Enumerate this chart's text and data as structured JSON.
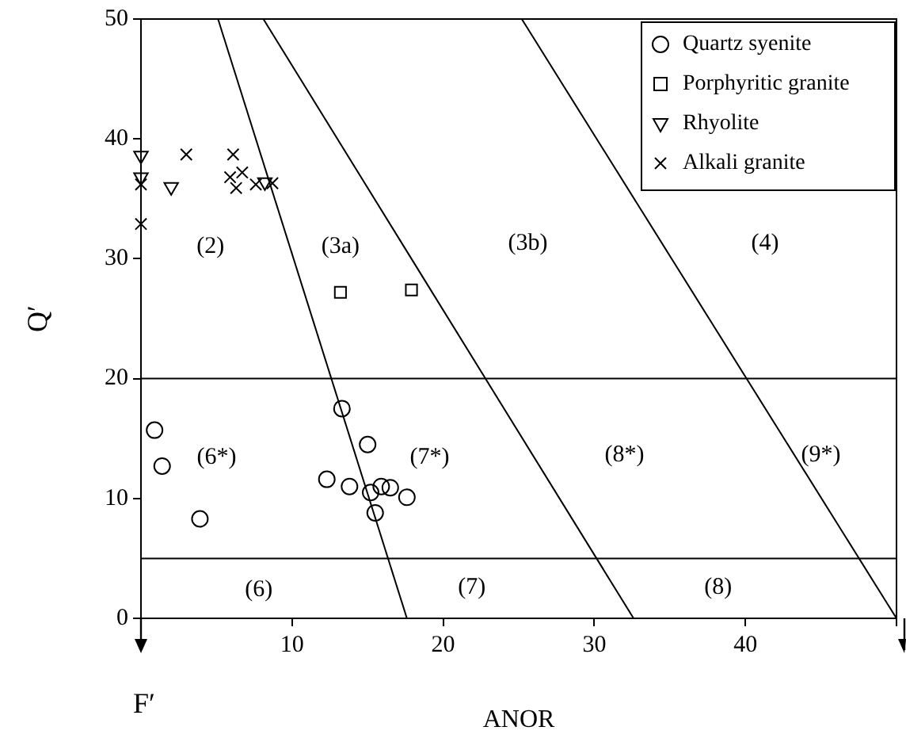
{
  "chart_data": {
    "type": "scatter",
    "xlabel": "ANOR",
    "ylabel": "Q′",
    "xlim": [
      0,
      50
    ],
    "ylim": [
      0,
      50
    ],
    "xticks": [
      {
        "value": 0,
        "label": null
      },
      10,
      20,
      30,
      40,
      {
        "value": 50,
        "label": null
      }
    ],
    "yticks": [
      0,
      10,
      20,
      30,
      40,
      50
    ],
    "grid": false,
    "legend": "top right",
    "series": [
      {
        "name": "Quartz syenite",
        "color": "#000000",
        "marker": "circle",
        "x": [
          0.9,
          1.4,
          3.9,
          13.3,
          15.0,
          12.3,
          13.8,
          15.2,
          15.9,
          16.5,
          17.6,
          15.5
        ],
        "values": [
          15.7,
          12.7,
          8.3,
          17.5,
          14.5,
          11.6,
          11.0,
          10.5,
          11.0,
          10.9,
          10.1,
          8.8
        ]
      },
      {
        "name": "Porphyritic granite",
        "color": "#000000",
        "marker": "square",
        "x": [
          13.2,
          17.9
        ],
        "values": [
          27.2,
          27.4
        ]
      },
      {
        "name": "Rhyolite",
        "color": "#000000",
        "marker": "triangle",
        "x": [
          0,
          0,
          2.0,
          8.2
        ],
        "values": [
          38.6,
          36.8,
          36.0,
          36.4
        ]
      },
      {
        "name": "Alkali granite",
        "color": "#000000",
        "marker": "cross",
        "x": [
          0,
          0,
          3.0,
          6.1,
          5.9,
          6.7,
          6.3,
          7.6,
          8.7
        ],
        "values": [
          36.2,
          32.9,
          38.7,
          38.7,
          36.8,
          37.2,
          35.9,
          36.2,
          36.3
        ]
      },
      {
        "type": "line",
        "color": "#000000",
        "marker": "none",
        "x": [
          5.1,
          17.6
        ],
        "values": [
          50,
          0
        ]
      },
      {
        "type": "line",
        "color": "#000000",
        "marker": "none",
        "x": [
          8.1,
          32.6
        ],
        "values": [
          50,
          0
        ]
      },
      {
        "type": "line",
        "color": "#000000",
        "marker": "none",
        "x": [
          25.2,
          50
        ],
        "values": [
          50,
          0
        ]
      }
    ],
    "ref_lines": [
      {
        "axis": "y",
        "value": 20,
        "color": "#000000"
      },
      {
        "axis": "y",
        "value": 5,
        "color": "#000000"
      }
    ],
    "annotations": [
      "F′",
      "(2)",
      "(3a)",
      "(3b)",
      "(4)",
      "(6*)",
      "(7*)",
      "(8*)",
      "(9*)",
      "(6)",
      "(7)",
      "(8)"
    ]
  }
}
